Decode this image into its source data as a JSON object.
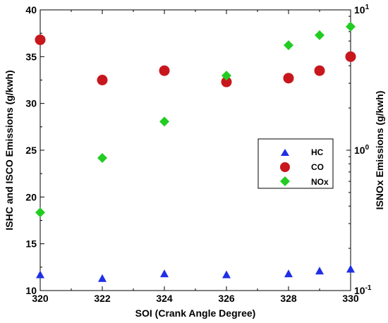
{
  "chart_data": {
    "type": "scatter",
    "xlabel": "SOI (Crank Angle Degree)",
    "ylabel": "ISHC and ISCO Emissions (g/kwh)",
    "y2label": "ISNOx Emissions (g/kwh)",
    "xlim": [
      320,
      330
    ],
    "ylim": [
      10,
      40
    ],
    "y2lim": [
      0.1,
      10
    ],
    "y2scale": "log",
    "x_ticks": [
      "320",
      "322",
      "324",
      "326",
      "328",
      "330"
    ],
    "y_ticks": [
      "10",
      "15",
      "20",
      "25",
      "30",
      "35",
      "40"
    ],
    "y2_ticks": [
      {
        "mantissa": "10",
        "exp": "-1"
      },
      {
        "mantissa": "10",
        "exp": "0"
      },
      {
        "mantissa": "10",
        "exp": "1"
      }
    ],
    "legend_position": "right-middle",
    "grid": false,
    "series": [
      {
        "name": "HC",
        "axis": "left",
        "marker": "triangle",
        "color": "#1f2fe6",
        "x": [
          320,
          322,
          324,
          326,
          328,
          329,
          330
        ],
        "y": [
          11.7,
          11.3,
          11.8,
          11.7,
          11.8,
          12.1,
          12.3
        ]
      },
      {
        "name": "CO",
        "axis": "left",
        "marker": "circle",
        "color": "#c8161d",
        "x": [
          320,
          322,
          324,
          326,
          328,
          329,
          330
        ],
        "y": [
          36.8,
          32.5,
          33.5,
          32.3,
          32.7,
          33.5,
          35.0
        ]
      },
      {
        "name": "NOx",
        "axis": "right",
        "marker": "diamond",
        "color": "#22cc22",
        "x": [
          320,
          322,
          324,
          326,
          328,
          329,
          330
        ],
        "y": [
          0.36,
          0.88,
          1.6,
          3.4,
          5.6,
          6.6,
          7.6
        ]
      }
    ]
  }
}
